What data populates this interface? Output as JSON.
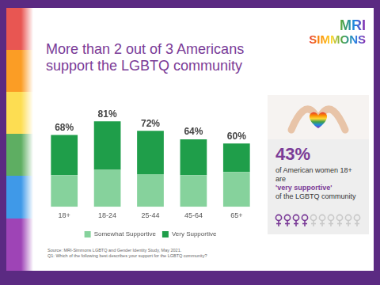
{
  "chart_data": {
    "type": "bar",
    "title": "More than 2 out of 3 Americans support the LGBTQ community",
    "categories": [
      "18+",
      "18-24",
      "25-44",
      "45-64",
      "65+"
    ],
    "series": [
      {
        "name": "Somewhat Supportive",
        "color": "#86d29c",
        "values": [
          30,
          35,
          31,
          30,
          33
        ]
      },
      {
        "name": "Very Supportive",
        "color": "#1f9e4a",
        "values": [
          38,
          46,
          41,
          34,
          27
        ]
      }
    ],
    "totals": [
      68,
      81,
      72,
      64,
      60
    ],
    "total_labels": [
      "68%",
      "81%",
      "72%",
      "64%",
      "60%"
    ],
    "stacked": true,
    "ylim": [
      0,
      100
    ],
    "grid": false,
    "legend": "bottom",
    "tick_labels": "x",
    "source": [
      "Source: MRI-Simmons LGBTQ and Gender Identity Study, May 2021.",
      "Q1: Which of the following best describes your support for the LGBTQ community?"
    ]
  },
  "logo": [
    "MRI",
    "SIMMONS"
  ],
  "callout": {
    "stat": "43%",
    "text_before": "of American women 18+ are",
    "emphasis": "'very supportive'",
    "text_after": "of the LGBTQ community",
    "icons_filled": 4,
    "icons_total": 10
  }
}
